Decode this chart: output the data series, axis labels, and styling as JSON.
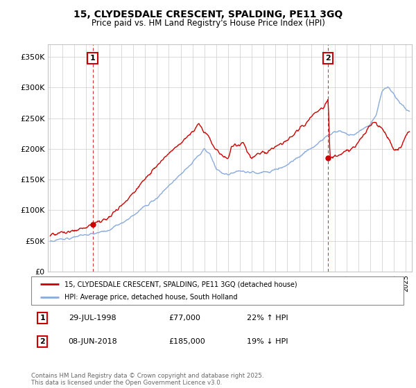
{
  "title": "15, CLYDESDALE CRESCENT, SPALDING, PE11 3GQ",
  "subtitle": "Price paid vs. HM Land Registry's House Price Index (HPI)",
  "ylabel_ticks": [
    "£0",
    "£50K",
    "£100K",
    "£150K",
    "£200K",
    "£250K",
    "£300K",
    "£350K"
  ],
  "ytick_values": [
    0,
    50000,
    100000,
    150000,
    200000,
    250000,
    300000,
    350000
  ],
  "ylim": [
    0,
    370000
  ],
  "xlim_start": 1994.8,
  "xlim_end": 2025.5,
  "legend_line1": "15, CLYDESDALE CRESCENT, SPALDING, PE11 3GQ (detached house)",
  "legend_line2": "HPI: Average price, detached house, South Holland",
  "sale1_date": "29-JUL-1998",
  "sale1_price": "£77,000",
  "sale1_hpi": "22% ↑ HPI",
  "sale2_date": "08-JUN-2018",
  "sale2_price": "£185,000",
  "sale2_hpi": "19% ↓ HPI",
  "footer": "Contains HM Land Registry data © Crown copyright and database right 2025.\nThis data is licensed under the Open Government Licence v3.0.",
  "red_color": "#cc0000",
  "blue_color": "#88aadd",
  "marker1_x": 1998.58,
  "marker1_y": 77000,
  "marker2_x": 2018.44,
  "marker2_y": 185000,
  "background_color": "#ffffff",
  "grid_color": "#cccccc"
}
